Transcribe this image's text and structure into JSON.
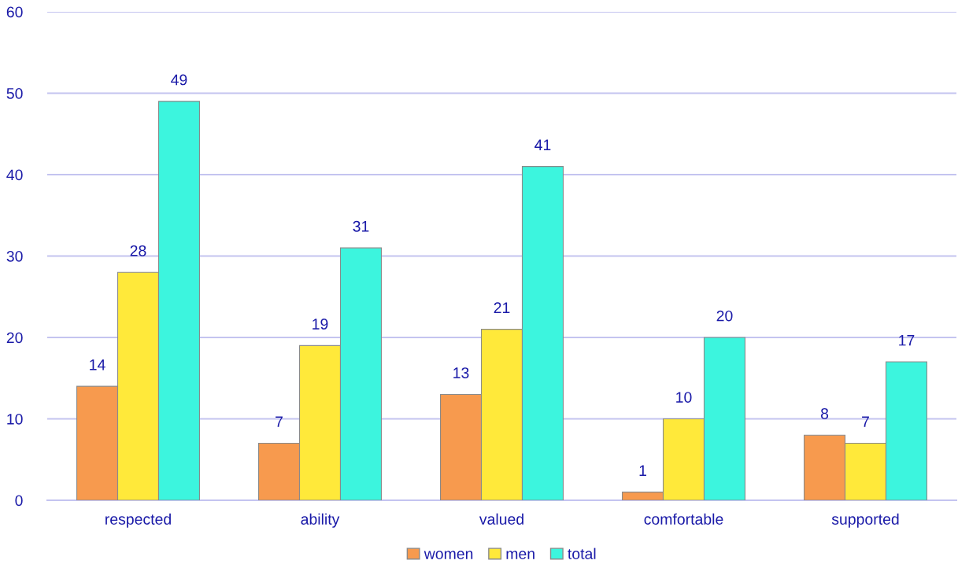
{
  "chart_data": {
    "type": "bar",
    "categories": [
      "respected",
      "ability",
      "valued",
      "comfortable",
      "supported"
    ],
    "series": [
      {
        "name": "women",
        "color": "#f79a4e",
        "values": [
          14,
          7,
          13,
          1,
          8
        ]
      },
      {
        "name": "men",
        "color": "#ffe93a",
        "values": [
          28,
          19,
          21,
          10,
          7
        ]
      },
      {
        "name": "total",
        "color": "#3cf5de",
        "values": [
          49,
          31,
          41,
          20,
          17
        ]
      }
    ],
    "ylim": [
      0,
      60
    ],
    "yticks": [
      0,
      10,
      20,
      30,
      40,
      50,
      60
    ],
    "grid": "y",
    "legend": "bottom",
    "data_labels": true
  }
}
